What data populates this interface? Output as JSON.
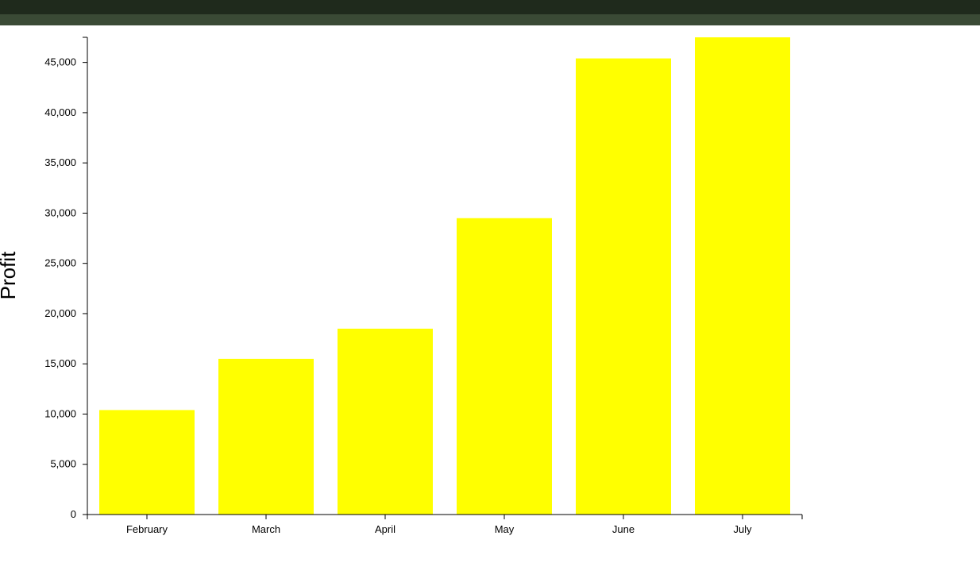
{
  "colors": {
    "bar": "#ffff00",
    "topbar": "#1f2a1c",
    "topbar_strip": "#3a4a35"
  },
  "chart_data": {
    "type": "bar",
    "categories": [
      "February",
      "March",
      "April",
      "May",
      "June",
      "July"
    ],
    "values": [
      10400,
      15500,
      18500,
      29500,
      45400,
      47500
    ],
    "title": "",
    "xlabel": "",
    "ylabel": "Profit",
    "ylim": [
      0,
      47500
    ],
    "yticks": [
      0,
      5000,
      10000,
      15000,
      20000,
      25000,
      30000,
      35000,
      40000,
      45000
    ],
    "ytick_labels": [
      "0",
      "5,000",
      "10,000",
      "15,000",
      "20,000",
      "25,000",
      "30,000",
      "35,000",
      "40,000",
      "45,000"
    ],
    "grid": false,
    "legend": "none"
  }
}
